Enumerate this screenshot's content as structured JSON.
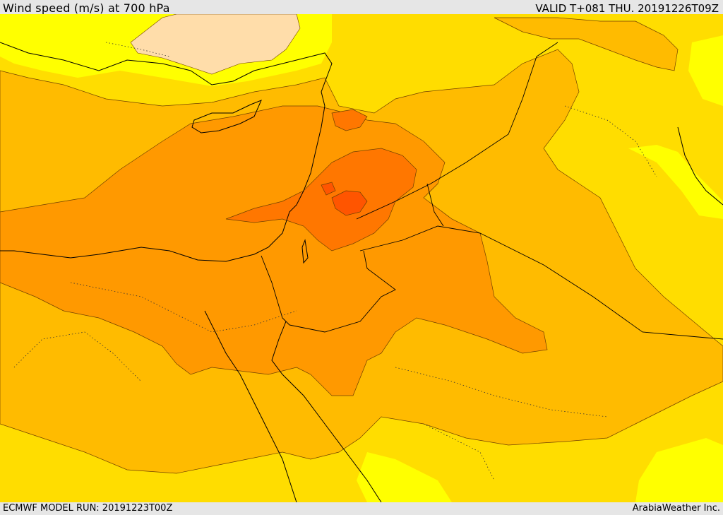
{
  "header": {
    "title": "Wind speed (m/s) at 700 hPa",
    "valid_time": "VALID T+081 THU. 20191226T09Z"
  },
  "footer": {
    "model_run": "ECMWF MODEL RUN: 20191223T00Z",
    "credit": "ArabiaWeather Inc."
  },
  "map": {
    "region": "Eastern Mediterranean and Middle East",
    "palette": {
      "band_1": "#ffff00",
      "band_2": "#ffdd00",
      "band_3": "#ffbb00",
      "band_4": "#ff9900",
      "band_5": "#ff7700",
      "band_6": "#ff5500",
      "band_calm": "#ffddaa",
      "coastline": "#000000",
      "border": "#000000"
    }
  }
}
